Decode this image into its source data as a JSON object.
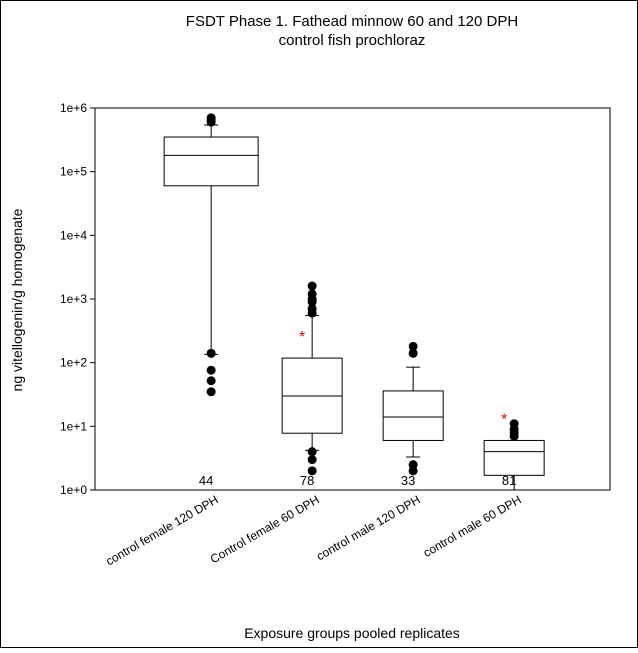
{
  "chart_data": {
    "type": "box",
    "title": [
      "FSDT Phase 1. Fathead minnow 60 and 120 DPH",
      "control fish prochloraz"
    ],
    "x_label": "Exposure groups pooled replicates",
    "y_label": "ng vitellogenin/g homogenate",
    "y_scale": "log",
    "ylim": [
      1,
      1000000
    ],
    "yticks": [
      {
        "value": 1,
        "label": "1e+0"
      },
      {
        "value": 10,
        "label": "1e+1"
      },
      {
        "value": 100,
        "label": "1e+2"
      },
      {
        "value": 1000,
        "label": "1e+3"
      },
      {
        "value": 10000,
        "label": "1e+4"
      },
      {
        "value": 100000,
        "label": "1e+5"
      },
      {
        "value": 1000000,
        "label": "1e+6"
      }
    ],
    "categories": [
      "control female 120 DPH",
      "Control female 60 DPH",
      "control male 120 DPH",
      "control male 60 DPH"
    ],
    "n_labels": [
      "44",
      "78",
      "33",
      "81"
    ],
    "boxes": [
      {
        "whisker_low": 135,
        "q1": 60000,
        "median": 180000,
        "q3": 350000,
        "whisker_high": 540000,
        "outliers": [
          140,
          76,
          52,
          35,
          600000,
          650000,
          700000
        ],
        "marker": null
      },
      {
        "whisker_low": 4.2,
        "q1": 7.8,
        "median": 30,
        "q3": 118,
        "whisker_high": 550,
        "outliers": [
          4,
          3,
          2,
          600,
          700,
          900,
          1000,
          1200,
          1600
        ],
        "marker": "*"
      },
      {
        "whisker_low": 3.3,
        "q1": 6,
        "median": 14,
        "q3": 36,
        "whisker_high": 85,
        "outliers": [
          2.5,
          2,
          140,
          180
        ],
        "marker": null
      },
      {
        "whisker_low": 1,
        "q1": 1.7,
        "median": 4,
        "q3": 6,
        "whisker_high": 6,
        "outliers": [
          7,
          8,
          9,
          11
        ],
        "marker": "*"
      }
    ]
  }
}
